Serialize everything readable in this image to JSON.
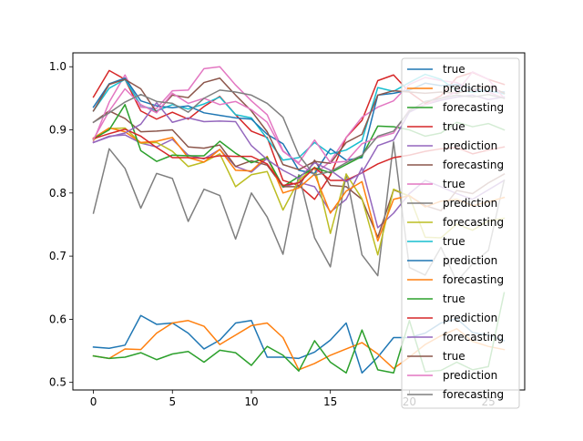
{
  "chart_data": {
    "type": "line",
    "title": "",
    "xlabel": "",
    "ylabel": "",
    "xlim": [
      -1.3,
      27.3
    ],
    "ylim": [
      0.488,
      1.022
    ],
    "x_ticks": [
      0,
      5,
      10,
      15,
      20,
      25
    ],
    "y_ticks": [
      0.5,
      0.6,
      0.7,
      0.8,
      0.9,
      1.0
    ],
    "y_tick_labels": [
      "0.5",
      "0.6",
      "0.7",
      "0.8",
      "0.9",
      "1.0"
    ],
    "grid": false,
    "legend_position": "right",
    "x": [
      0,
      1,
      2,
      3,
      4,
      5,
      6,
      7,
      8,
      9,
      10,
      11,
      12,
      13,
      14,
      15,
      16,
      17,
      18,
      19,
      20,
      21,
      22,
      23,
      24,
      25,
      26
    ],
    "series": [
      {
        "name": "true",
        "color": "#1f77b4",
        "values": [
          0.556,
          0.554,
          0.559,
          0.606,
          0.592,
          0.594,
          0.578,
          0.553,
          0.567,
          0.594,
          0.598,
          0.54,
          0.54,
          0.538,
          0.548,
          0.567,
          0.594,
          0.515,
          0.54,
          0.571,
          0.571,
          0.578,
          0.594,
          0.601,
          0.579,
          0.575,
          0.566
        ]
      },
      {
        "name": "prediction",
        "color": "#ff7f0e",
        "values": [
          0.542,
          0.538,
          0.553,
          0.552,
          0.578,
          0.594,
          0.598,
          0.589,
          0.56,
          0.575,
          0.59,
          0.594,
          0.571,
          0.52,
          0.53,
          0.543,
          0.553,
          0.563,
          0.545,
          0.522,
          0.54,
          0.56,
          0.574,
          0.585,
          0.565,
          0.557,
          0.552
        ]
      },
      {
        "name": "forecasting",
        "color": "#2ca02c",
        "values": [
          0.542,
          0.538,
          0.54,
          0.547,
          0.536,
          0.545,
          0.549,
          0.532,
          0.551,
          0.547,
          0.527,
          0.557,
          0.543,
          0.518,
          0.566,
          0.532,
          0.515,
          0.583,
          0.52,
          0.515,
          0.598,
          0.517,
          0.519,
          0.532,
          0.52,
          0.525,
          0.642
        ]
      },
      {
        "name": "true",
        "color": "#d62728",
        "values": [
          0.952,
          0.994,
          0.98,
          0.93,
          0.917,
          0.928,
          0.917,
          0.937,
          0.953,
          0.924,
          0.898,
          0.888,
          0.82,
          0.812,
          0.79,
          0.828,
          0.888,
          0.915,
          0.978,
          0.987,
          0.96,
          0.942,
          0.954,
          0.983,
          0.991,
          0.98,
          0.972
        ]
      },
      {
        "name": "prediction",
        "color": "#9467bd",
        "values": [
          0.88,
          0.89,
          0.892,
          0.879,
          0.873,
          0.885,
          0.86,
          0.854,
          0.869,
          0.842,
          0.833,
          0.855,
          0.809,
          0.817,
          0.81,
          0.77,
          0.79,
          0.84,
          0.745,
          0.768,
          0.799,
          0.82,
          0.81,
          0.799,
          0.79,
          0.805,
          0.82
        ]
      },
      {
        "name": "forecasting",
        "color": "#8c564b",
        "values": [
          0.912,
          0.93,
          0.918,
          0.897,
          0.898,
          0.9,
          0.873,
          0.871,
          0.876,
          0.842,
          0.851,
          0.844,
          0.81,
          0.81,
          0.852,
          0.812,
          0.81,
          0.79,
          0.73,
          0.805,
          0.795,
          0.78,
          0.772,
          0.804,
          0.799,
          0.816,
          0.83
        ]
      },
      {
        "name": "true",
        "color": "#e377c2",
        "values": [
          0.882,
          0.944,
          0.987,
          0.936,
          0.934,
          0.962,
          0.963,
          0.997,
          1.0,
          0.971,
          0.946,
          0.924,
          0.867,
          0.846,
          0.83,
          0.85,
          0.888,
          0.92,
          0.936,
          0.946,
          0.972,
          0.983,
          0.978,
          0.975,
          0.963,
          0.96,
          0.95
        ]
      },
      {
        "name": "prediction",
        "color": "#7f7f7f",
        "values": [
          0.768,
          0.87,
          0.839,
          0.776,
          0.831,
          0.823,
          0.755,
          0.806,
          0.796,
          0.727,
          0.8,
          0.762,
          0.703,
          0.829,
          0.729,
          0.683,
          0.83,
          0.702,
          0.669,
          0.881,
          0.682,
          0.67,
          0.714,
          0.66,
          0.688,
          0.709,
          0.82
        ]
      },
      {
        "name": "forecasting",
        "color": "#bcbd22",
        "values": [
          0.884,
          0.902,
          0.903,
          0.879,
          0.88,
          0.866,
          0.842,
          0.849,
          0.862,
          0.81,
          0.829,
          0.834,
          0.773,
          0.82,
          0.841,
          0.736,
          0.83,
          0.791,
          0.702,
          0.806,
          0.795,
          0.73,
          0.729,
          0.751,
          0.741,
          0.756,
          0.76
        ]
      },
      {
        "name": "true",
        "color": "#17becf",
        "values": [
          0.93,
          0.966,
          0.98,
          0.939,
          0.93,
          0.94,
          0.933,
          0.941,
          0.952,
          0.924,
          0.919,
          0.886,
          0.852,
          0.856,
          0.88,
          0.862,
          0.868,
          0.883,
          0.967,
          0.961,
          0.975,
          0.988,
          0.98,
          0.962,
          0.96,
          0.962,
          0.957
        ]
      },
      {
        "name": "prediction",
        "color": "#1f77b4",
        "values": [
          0.936,
          0.973,
          0.982,
          0.946,
          0.938,
          0.935,
          0.938,
          0.927,
          0.923,
          0.919,
          0.917,
          0.893,
          0.878,
          0.836,
          0.831,
          0.87,
          0.852,
          0.856,
          0.955,
          0.958,
          0.963,
          0.974,
          0.97,
          0.972,
          0.965,
          0.961,
          0.96
        ]
      },
      {
        "name": "forecasting",
        "color": "#ff7f0e",
        "values": [
          0.887,
          0.903,
          0.897,
          0.88,
          0.882,
          0.888,
          0.856,
          0.849,
          0.869,
          0.836,
          0.835,
          0.858,
          0.8,
          0.808,
          0.83,
          0.768,
          0.803,
          0.818,
          0.724,
          0.79,
          0.796,
          0.778,
          0.787,
          0.79,
          0.78,
          0.786,
          0.793
        ]
      },
      {
        "name": "true",
        "color": "#2ca02c",
        "values": [
          0.886,
          0.9,
          0.94,
          0.867,
          0.85,
          0.86,
          0.859,
          0.859,
          0.882,
          0.863,
          0.848,
          0.856,
          0.81,
          0.826,
          0.84,
          0.832,
          0.845,
          0.858,
          0.906,
          0.905,
          0.9,
          0.89,
          0.895,
          0.912,
          0.905,
          0.91,
          0.9
        ]
      },
      {
        "name": "prediction",
        "color": "#d62728",
        "values": [
          0.886,
          0.894,
          0.901,
          0.89,
          0.872,
          0.856,
          0.856,
          0.855,
          0.859,
          0.858,
          0.858,
          0.846,
          0.812,
          0.816,
          0.84,
          0.82,
          0.82,
          0.832,
          0.846,
          0.856,
          0.86,
          0.866,
          0.87,
          0.872,
          0.862,
          0.868,
          0.873
        ]
      },
      {
        "name": "forecasting",
        "color": "#9467bd",
        "values": [
          0.88,
          0.889,
          0.895,
          0.909,
          0.943,
          0.912,
          0.919,
          0.913,
          0.914,
          0.913,
          0.875,
          0.853,
          0.836,
          0.823,
          0.848,
          0.836,
          0.818,
          0.832,
          0.875,
          0.884,
          0.928,
          0.94,
          0.947,
          0.952,
          0.955,
          0.948,
          0.952
        ]
      },
      {
        "name": "true",
        "color": "#8c564b",
        "values": [
          0.93,
          0.972,
          0.98,
          0.965,
          0.928,
          0.955,
          0.951,
          0.975,
          0.982,
          0.955,
          0.93,
          0.897,
          0.845,
          0.837,
          0.85,
          0.847,
          0.88,
          0.893,
          0.955,
          0.962,
          0.96,
          0.958,
          0.96,
          0.958,
          0.964,
          0.97,
          0.958
        ]
      },
      {
        "name": "prediction",
        "color": "#e377c2",
        "values": [
          0.885,
          0.93,
          0.965,
          0.94,
          0.927,
          0.958,
          0.942,
          0.95,
          0.94,
          0.945,
          0.932,
          0.912,
          0.866,
          0.848,
          0.884,
          0.848,
          0.85,
          0.878,
          0.888,
          0.895,
          0.932,
          0.94,
          0.95,
          0.96,
          0.992,
          0.98,
          0.95
        ]
      },
      {
        "name": "forecasting",
        "color": "#7f7f7f",
        "values": [
          0.912,
          0.927,
          0.944,
          0.956,
          0.945,
          0.942,
          0.928,
          0.95,
          0.963,
          0.96,
          0.955,
          0.942,
          0.92,
          0.86,
          0.828,
          0.834,
          0.848,
          0.86,
          0.89,
          0.898,
          0.93,
          0.945,
          0.95,
          0.955,
          0.952,
          0.956,
          0.95
        ]
      }
    ]
  }
}
